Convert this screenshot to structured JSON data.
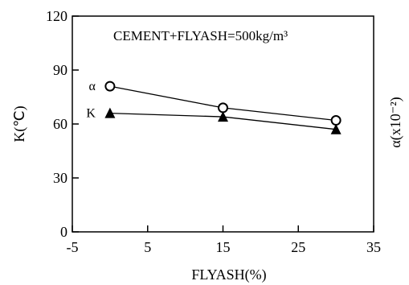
{
  "chart_data": {
    "type": "line",
    "annotation": "CEMENT+FLYASH=500kg/m³",
    "xlabel": "FLYASH(%)",
    "ylabel": "K(℃)",
    "y2label": "α(x10⁻²)",
    "xlim": [
      -5,
      35
    ],
    "ylim": [
      0,
      120
    ],
    "x_ticks": [
      "-5",
      "5",
      "15",
      "25",
      "35"
    ],
    "y_ticks": [
      "0",
      "30",
      "60",
      "90",
      "120"
    ],
    "grid": false,
    "series": [
      {
        "name": "α",
        "marker": "circle",
        "x": [
          0,
          15,
          30
        ],
        "y": [
          81,
          69,
          62
        ]
      },
      {
        "name": "K",
        "marker": "triangle",
        "x": [
          0,
          15,
          30
        ],
        "y": [
          66,
          64,
          57
        ]
      }
    ]
  }
}
